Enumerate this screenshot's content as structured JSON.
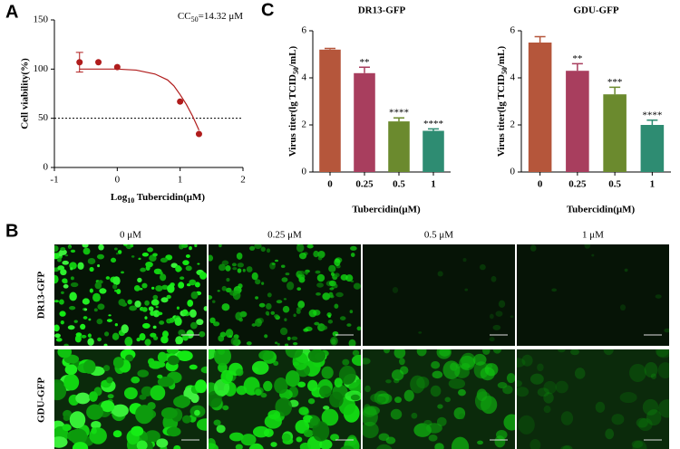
{
  "panels": {
    "a": "A",
    "b": "B",
    "c": "C"
  },
  "chart_data": [
    {
      "type": "scatter",
      "annotation": {
        "main": "CC",
        "sub": "50",
        "rest": "=14.32 μM"
      },
      "xlabel": {
        "main": "Log",
        "sub": "10",
        "rest": " Tubercidin(μM)"
      },
      "ylabel": "Cell viability(%)",
      "x": [
        -0.6,
        -0.3,
        0,
        1,
        1.3
      ],
      "y": [
        107,
        107,
        102,
        67,
        34
      ],
      "errors": [
        10,
        null,
        null,
        null,
        null
      ],
      "color": "#b01c1c",
      "fit": {
        "x": [
          -0.6,
          -0.3,
          0,
          0.3,
          0.6,
          0.8,
          0.9,
          1,
          1.1,
          1.2,
          1.3
        ],
        "y": [
          100,
          100,
          100,
          99,
          95,
          89,
          83,
          74,
          64,
          52,
          38
        ]
      },
      "reference_line": 50,
      "xlim": [
        -1,
        2
      ],
      "xticks": [
        -1,
        0,
        1,
        2
      ],
      "ylim": [
        0,
        150
      ],
      "yticks": [
        0,
        50,
        100,
        150
      ]
    },
    {
      "type": "bar",
      "title": "DR13-GFP",
      "ylabel": {
        "main": "Virus titer(lg TCID",
        "sub": "50",
        "rest": "/mL)"
      },
      "xlabel": "Tubercidin(μM)",
      "categories": [
        "0",
        "0.25",
        "0.5",
        "1"
      ],
      "values": [
        5.2,
        4.2,
        2.15,
        1.75
      ],
      "errors": [
        0.05,
        0.25,
        0.15,
        0.08
      ],
      "significance": [
        null,
        "**",
        "****",
        "****"
      ],
      "colors": [
        "#b5563b",
        "#a83e5e",
        "#6b8a2e",
        "#2e8c72"
      ],
      "ylim": [
        0,
        6
      ],
      "yticks": [
        0,
        2,
        4,
        6
      ]
    },
    {
      "type": "bar",
      "title": "GDU-GFP",
      "ylabel": {
        "main": "Virus titer(lg TCID",
        "sub": "50",
        "rest": "/mL)"
      },
      "xlabel": "Tubercidin(μM)",
      "categories": [
        "0",
        "0.25",
        "0.5",
        "1"
      ],
      "values": [
        5.5,
        4.3,
        3.3,
        2.0
      ],
      "errors": [
        0.25,
        0.3,
        0.3,
        0.2
      ],
      "significance": [
        null,
        "**",
        "***",
        "****"
      ],
      "colors": [
        "#b5563b",
        "#a83e5e",
        "#6b8a2e",
        "#2e8c72"
      ],
      "ylim": [
        0,
        6
      ],
      "yticks": [
        0,
        2,
        4,
        6
      ]
    }
  ],
  "image_grid": {
    "columns": [
      "0 μM",
      "0.25 μM",
      "0.5 μM",
      "1 μM"
    ],
    "rows": [
      "DR13-GFP",
      "GDU-GFP"
    ]
  }
}
